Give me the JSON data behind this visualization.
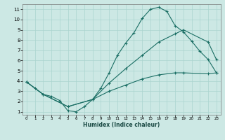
{
  "xlabel": "Humidex (Indice chaleur)",
  "bg_color": "#cce8e4",
  "grid_color": "#aad4cf",
  "line_color": "#1a6e64",
  "xlim_min": -0.5,
  "xlim_max": 23.5,
  "ylim_min": 0.7,
  "ylim_max": 11.5,
  "xticks": [
    0,
    1,
    2,
    3,
    4,
    5,
    6,
    7,
    8,
    9,
    10,
    11,
    12,
    13,
    14,
    15,
    16,
    17,
    18,
    19,
    20,
    21,
    22,
    23
  ],
  "yticks": [
    1,
    2,
    3,
    4,
    5,
    6,
    7,
    8,
    9,
    10,
    11
  ],
  "line1_x": [
    0,
    1,
    2,
    3,
    4,
    5,
    6,
    7,
    8,
    9,
    10,
    11,
    12,
    13,
    14,
    15,
    16,
    17,
    18,
    19,
    20,
    21,
    22,
    23
  ],
  "line1_y": [
    3.9,
    3.3,
    2.7,
    2.5,
    2.1,
    1.1,
    1.0,
    1.5,
    2.2,
    3.3,
    4.8,
    6.5,
    7.7,
    8.7,
    10.1,
    11.0,
    11.2,
    10.8,
    9.4,
    8.8,
    7.9,
    6.9,
    6.1,
    4.8
  ],
  "line2_x": [
    0,
    2,
    5,
    8,
    10,
    12,
    14,
    16,
    18,
    19,
    22,
    23
  ],
  "line2_y": [
    3.9,
    2.7,
    1.5,
    2.2,
    3.8,
    5.2,
    6.5,
    7.8,
    8.6,
    9.0,
    7.8,
    6.1
  ],
  "line3_x": [
    0,
    2,
    5,
    8,
    10,
    12,
    14,
    16,
    18,
    19,
    22,
    23
  ],
  "line3_y": [
    3.9,
    2.7,
    1.5,
    2.2,
    3.0,
    3.6,
    4.2,
    4.6,
    4.8,
    4.8,
    4.7,
    4.8
  ]
}
